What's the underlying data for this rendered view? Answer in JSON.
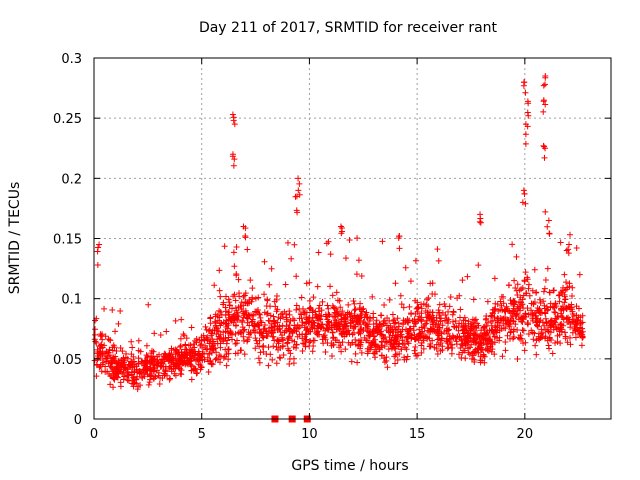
{
  "chart_data": {
    "type": "scatter",
    "title": "Day 211 of 2017, SRMTID for receiver rant",
    "xlabel": "GPS time / hours",
    "ylabel": "SRMTID / TECUs",
    "xlim": [
      0,
      24
    ],
    "ylim": [
      0,
      0.3
    ],
    "xticks": [
      0,
      5,
      10,
      15,
      20
    ],
    "xtick_labels": [
      "0",
      "5",
      "10",
      "15",
      "20"
    ],
    "yticks": [
      0,
      0.05,
      0.1,
      0.15,
      0.2,
      0.25,
      0.3
    ],
    "ytick_labels": [
      "0",
      "0.05",
      "0.1",
      "0.15",
      "0.2",
      "0.25",
      "0.3"
    ],
    "grid": true,
    "marker": "plus",
    "color": "#ff0000",
    "zero_markers_x": [
      8.4,
      9.2,
      9.9
    ],
    "envelope": {
      "x_hours": [
        0,
        1,
        2,
        3,
        4,
        5,
        6,
        7,
        8,
        9,
        10,
        11,
        12,
        13,
        14,
        15,
        16,
        17,
        18,
        19,
        20,
        21,
        22,
        22.7
      ],
      "median": [
        0.06,
        0.045,
        0.042,
        0.045,
        0.05,
        0.055,
        0.075,
        0.085,
        0.075,
        0.07,
        0.08,
        0.075,
        0.08,
        0.07,
        0.065,
        0.075,
        0.075,
        0.07,
        0.065,
        0.08,
        0.09,
        0.08,
        0.09,
        0.07
      ],
      "spread": [
        0.03,
        0.02,
        0.02,
        0.02,
        0.02,
        0.025,
        0.04,
        0.04,
        0.035,
        0.035,
        0.035,
        0.035,
        0.035,
        0.03,
        0.025,
        0.03,
        0.03,
        0.025,
        0.025,
        0.03,
        0.04,
        0.035,
        0.035,
        0.02
      ]
    },
    "peaks": [
      {
        "x": 0.2,
        "y": 0.145
      },
      {
        "x": 6.5,
        "y": 0.253
      },
      {
        "x": 6.5,
        "y": 0.22
      },
      {
        "x": 9.5,
        "y": 0.2
      },
      {
        "x": 9.4,
        "y": 0.185
      },
      {
        "x": 7.0,
        "y": 0.16
      },
      {
        "x": 11.5,
        "y": 0.16
      },
      {
        "x": 14.2,
        "y": 0.152
      },
      {
        "x": 17.9,
        "y": 0.17
      },
      {
        "x": 20.0,
        "y": 0.28
      },
      {
        "x": 20.1,
        "y": 0.264
      },
      {
        "x": 20.1,
        "y": 0.245
      },
      {
        "x": 20.0,
        "y": 0.19
      },
      {
        "x": 20.9,
        "y": 0.285
      },
      {
        "x": 20.9,
        "y": 0.265
      },
      {
        "x": 20.9,
        "y": 0.227
      },
      {
        "x": 21.1,
        "y": 0.165
      },
      {
        "x": 22.0,
        "y": 0.145
      }
    ]
  }
}
